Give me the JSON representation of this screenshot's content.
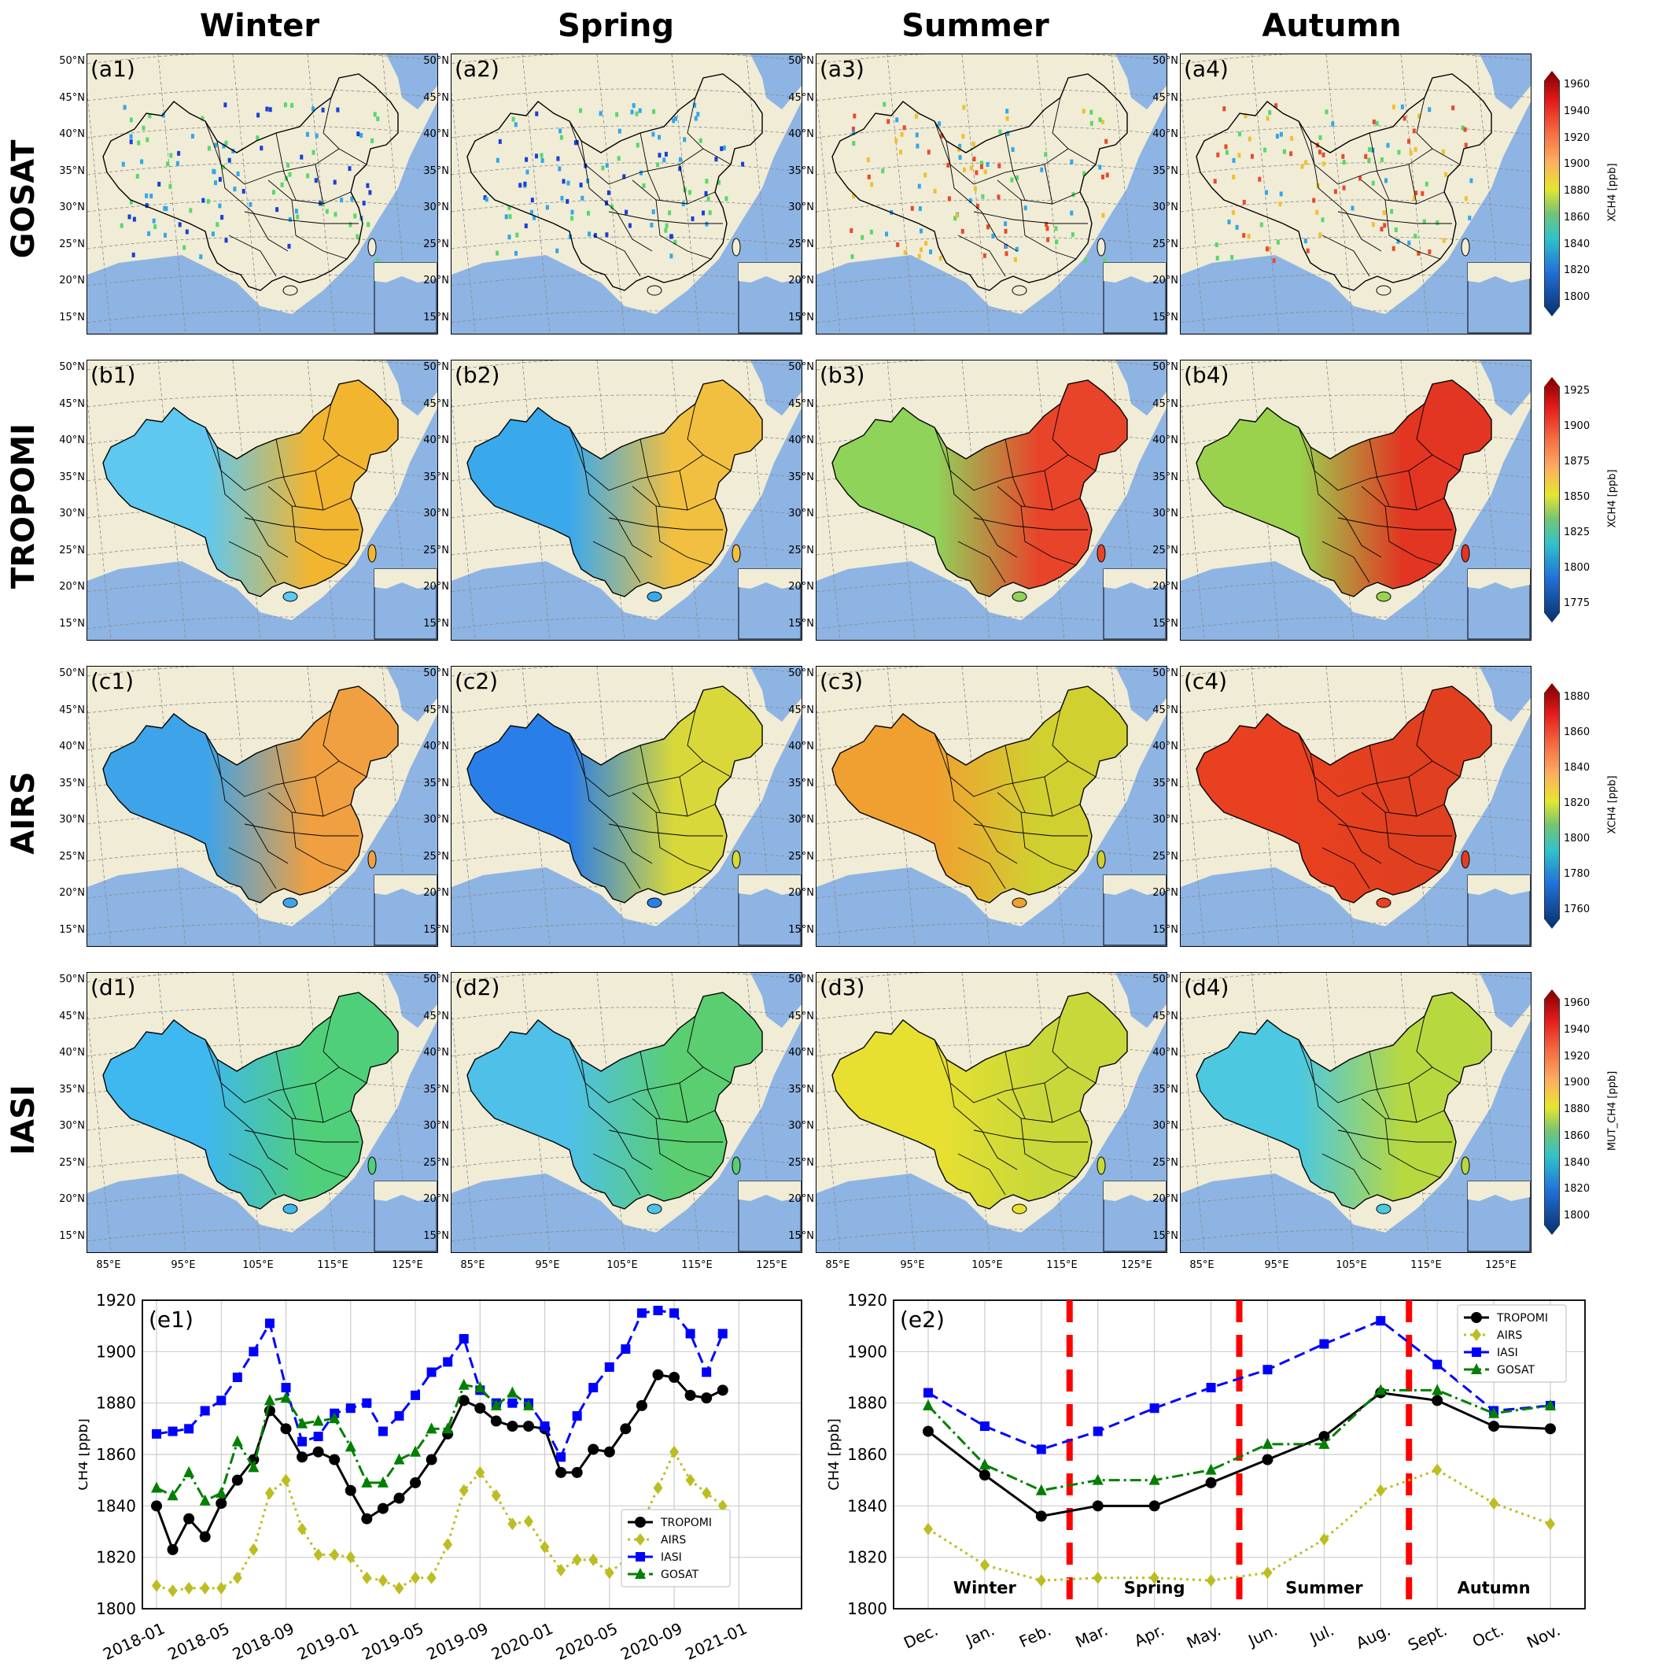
{
  "seasons": [
    "Winter",
    "Spring",
    "Summer",
    "Autumn"
  ],
  "rows": [
    {
      "name": "GOSAT",
      "labels": [
        "(a1)",
        "(a2)",
        "(a3)",
        "(a4)"
      ],
      "colorbar": {
        "ticks": [
          "1960",
          "1940",
          "1920",
          "1900",
          "1880",
          "1860",
          "1840",
          "1820",
          "1800"
        ],
        "label": "XCH4 [ppb]"
      }
    },
    {
      "name": "TROPOMI",
      "labels": [
        "(b1)",
        "(b2)",
        "(b3)",
        "(b4)"
      ],
      "colorbar": {
        "ticks": [
          "1925",
          "1900",
          "1875",
          "1850",
          "1825",
          "1800",
          "1775"
        ],
        "label": "XCH4 [ppb]"
      }
    },
    {
      "name": "AIRS",
      "labels": [
        "(c1)",
        "(c2)",
        "(c3)",
        "(c4)"
      ],
      "colorbar": {
        "ticks": [
          "1880",
          "1860",
          "1840",
          "1820",
          "1800",
          "1780",
          "1760"
        ],
        "label": "XCH4 [ppb]"
      }
    },
    {
      "name": "IASI",
      "labels": [
        "(d1)",
        "(d2)",
        "(d3)",
        "(d4)"
      ],
      "colorbar": {
        "ticks": [
          "1960",
          "1940",
          "1920",
          "1900",
          "1880",
          "1860",
          "1840",
          "1820",
          "1800"
        ],
        "label": "MUT_CH4 [ppb]"
      }
    }
  ],
  "lat_labels": [
    "50°N",
    "45°N",
    "40°N",
    "35°N",
    "30°N",
    "25°N",
    "20°N",
    "15°N"
  ],
  "lon_labels": [
    "85°E",
    "95°E",
    "105°E",
    "115°E",
    "125°E"
  ],
  "chart_data": [
    {
      "type": "line",
      "panel": "(e1)",
      "xlabel": "",
      "ylabel": "CH4 [ppb]",
      "ylim": [
        1800,
        1920
      ],
      "yticks": [
        "1800",
        "1820",
        "1840",
        "1860",
        "1880",
        "1900",
        "1920"
      ],
      "xticks": [
        "2018-01",
        "2018-05",
        "2018-09",
        "2019-01",
        "2019-05",
        "2019-09",
        "2020-01",
        "2020-05",
        "2020-09",
        "2021-01"
      ],
      "xtick_months": [
        0,
        4,
        8,
        12,
        16,
        20,
        24,
        28,
        32,
        36
      ],
      "x_month_offset": [
        0,
        1,
        2,
        3,
        4,
        5,
        6,
        7,
        8,
        9,
        10,
        11,
        12,
        13,
        14,
        15,
        16,
        17,
        18,
        19,
        20,
        21,
        22,
        23,
        24,
        25,
        26,
        27,
        28,
        29,
        30,
        31,
        32,
        33,
        34,
        35
      ],
      "legend": "lower-right",
      "series": [
        {
          "name": "TROPOMI",
          "color": "#000000",
          "marker": "circle",
          "dash": "solid",
          "values": [
            1840,
            1823,
            1835,
            1828,
            1841,
            1850,
            1858,
            1877,
            1870,
            1859,
            1861,
            1858,
            1846,
            1835,
            1839,
            1843,
            1849,
            1858,
            1868,
            1881,
            1878,
            1873,
            1871,
            1871,
            1870,
            1853,
            1853,
            1862,
            1861,
            1870,
            1879,
            1891,
            1890,
            1883,
            1882,
            1885
          ]
        },
        {
          "name": "AIRS",
          "color": "#bcbd22",
          "marker": "diamond",
          "dash": "dotted",
          "values": [
            1809,
            1807,
            1808,
            1808,
            1808,
            1812,
            1823,
            1845,
            1850,
            1831,
            1821,
            1821,
            1820,
            1812,
            1811,
            1808,
            1812,
            1812,
            1825,
            1846,
            1853,
            1844,
            1833,
            1834,
            1824,
            1815,
            1819,
            1819,
            1814,
            1819,
            1833,
            1847,
            1861,
            1850,
            1845,
            1840
          ]
        },
        {
          "name": "IASI",
          "color": "#0000ff",
          "marker": "square",
          "dash": "dashed",
          "values": [
            1868,
            1869,
            1870,
            1877,
            1881,
            1890,
            1900,
            1911,
            1886,
            1865,
            1867,
            1876,
            1878,
            1880,
            1869,
            1875,
            1883,
            1892,
            1896,
            1905,
            1885,
            1880,
            1880,
            1880,
            1871,
            1859,
            1875,
            1886,
            1894,
            1901,
            1915,
            1916,
            1915,
            1907,
            1892,
            1907
          ]
        },
        {
          "name": "GOSAT",
          "color": "#007f00",
          "marker": "triangle",
          "dash": "dashdot",
          "values": [
            1847,
            1844,
            1853,
            1842,
            1845,
            1865,
            1855,
            1881,
            1882,
            1872,
            1873,
            1874,
            1863,
            1849,
            1849,
            1858,
            1861,
            1870,
            1870,
            1887,
            1886,
            1879,
            1884,
            1879,
            null,
            null,
            null,
            null,
            null,
            null,
            null,
            null,
            null,
            null,
            null,
            null
          ]
        }
      ]
    },
    {
      "type": "line",
      "panel": "(e2)",
      "xlabel": "",
      "ylabel": "CH4 [ppb]",
      "ylim": [
        1800,
        1920
      ],
      "yticks": [
        "1800",
        "1820",
        "1840",
        "1860",
        "1880",
        "1900",
        "1920"
      ],
      "categories": [
        "Dec.",
        "Jan.",
        "Feb.",
        "Mar.",
        "Apr.",
        "May.",
        "Jun.",
        "Jul.",
        "Aug.",
        "Sept.",
        "Oct.",
        "Nov."
      ],
      "season_labels": [
        "Winter",
        "Spring",
        "Summer",
        "Autumn"
      ],
      "season_dividers_after": [
        2.5,
        5.5,
        8.5
      ],
      "legend": "top-right",
      "series": [
        {
          "name": "TROPOMI",
          "color": "#000000",
          "marker": "circle",
          "dash": "solid",
          "values": [
            1869,
            1852,
            1836,
            1840,
            1840,
            1849,
            1858,
            1867,
            1884,
            1881,
            1871,
            1870
          ]
        },
        {
          "name": "AIRS",
          "color": "#bcbd22",
          "marker": "diamond",
          "dash": "dotted",
          "values": [
            1831,
            1817,
            1811,
            1812,
            1812,
            1811,
            1814,
            1827,
            1846,
            1854,
            1841,
            1833
          ]
        },
        {
          "name": "IASI",
          "color": "#0000ff",
          "marker": "square",
          "dash": "dashed",
          "values": [
            1884,
            1871,
            1862,
            1869,
            1878,
            1886,
            1893,
            1903,
            1912,
            1895,
            1877,
            1879
          ]
        },
        {
          "name": "GOSAT",
          "color": "#007f00",
          "marker": "triangle",
          "dash": "dashdot",
          "values": [
            1879,
            1856,
            1846,
            1850,
            1850,
            1854,
            1864,
            1864,
            1885,
            1885,
            1876,
            1879
          ]
        }
      ]
    }
  ]
}
